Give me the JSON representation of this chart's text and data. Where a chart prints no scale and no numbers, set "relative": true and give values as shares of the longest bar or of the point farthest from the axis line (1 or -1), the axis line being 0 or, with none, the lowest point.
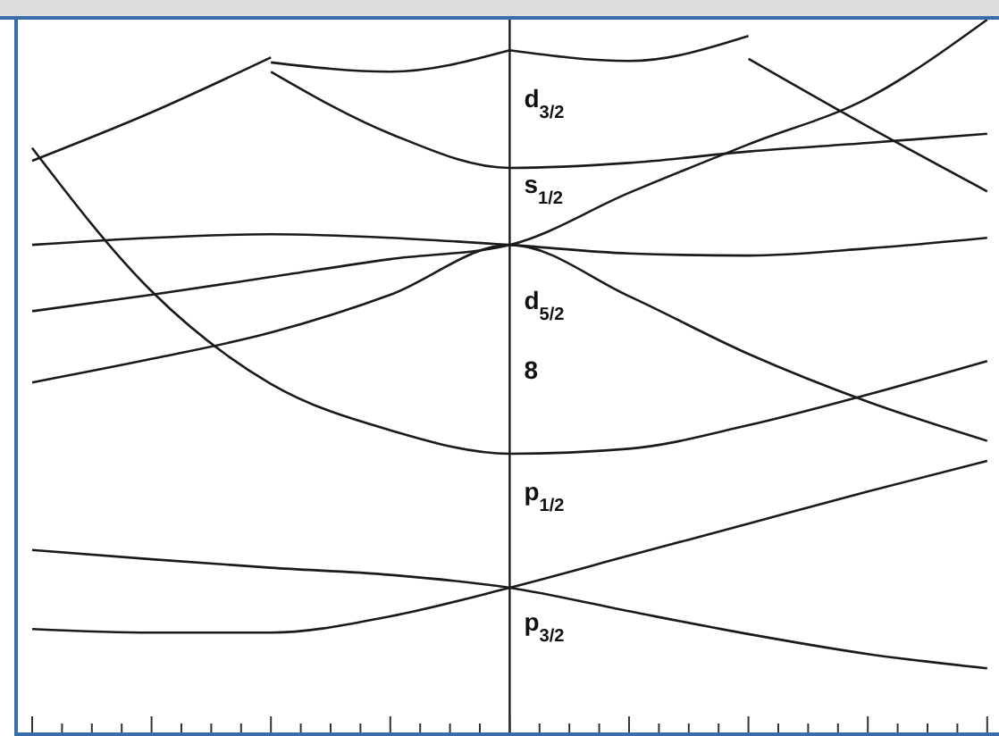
{
  "chart_data": {
    "type": "line",
    "relative": true,
    "categories": [
      null,
      null,
      null,
      null,
      null,
      null,
      null,
      null,
      null
    ],
    "color": "#1a1a1a",
    "marker": "none",
    "line_style": "solid",
    "grid": false,
    "series": [
      {
        "values": [
          0.256,
          0.243,
          0.231,
          0.221,
          0.203,
          0.17,
          0.138,
          0.11,
          0.09
        ]
      },
      {
        "values": [
          0.145,
          0.14,
          0.14,
          0.163,
          0.203,
          0.248,
          0.293,
          0.338,
          0.381
        ]
      },
      {
        "values": [
          0.82,
          0.619,
          0.489,
          0.424,
          0.391,
          0.398,
          0.431,
          0.474,
          0.521
        ]
      },
      {
        "values": [
          0.491,
          0.524,
          0.561,
          0.614,
          0.684,
          0.612,
          0.531,
          0.464,
          0.409
        ]
      },
      {
        "values": [
          0.684,
          0.694,
          0.699,
          0.694,
          0.684,
          0.672,
          0.669,
          0.679,
          0.694
        ]
      },
      {
        "values": [
          0.591,
          0.614,
          0.639,
          0.664,
          0.684,
          0.757,
          0.825,
          0.89,
          1
        ]
      },
      {
        "values": [
          null,
          null,
          0.927,
          0.84,
          0.792,
          0.799,
          0.815,
          0.827,
          0.84
        ]
      },
      {
        "values": [
          0.802,
          0.87,
          0.947,
          null,
          null,
          null,
          null,
          null,
          null
        ]
      },
      {
        "values": [
          null,
          null,
          0.94,
          0.927,
          0.957,
          null,
          null,
          null,
          null
        ]
      },
      {
        "values": [
          null,
          null,
          null,
          null,
          0.957,
          0.942,
          0.977,
          null,
          null
        ]
      },
      {
        "values": [
          null,
          null,
          null,
          null,
          null,
          null,
          0.945,
          0.85,
          0.759
        ]
      }
    ],
    "annotations": [
      "d$_{3/2}$",
      "s$_{1/2}$",
      "d$_{5/2}$",
      "8",
      "p$_{1/2}$",
      "p$_{3/2}$"
    ]
  }
}
